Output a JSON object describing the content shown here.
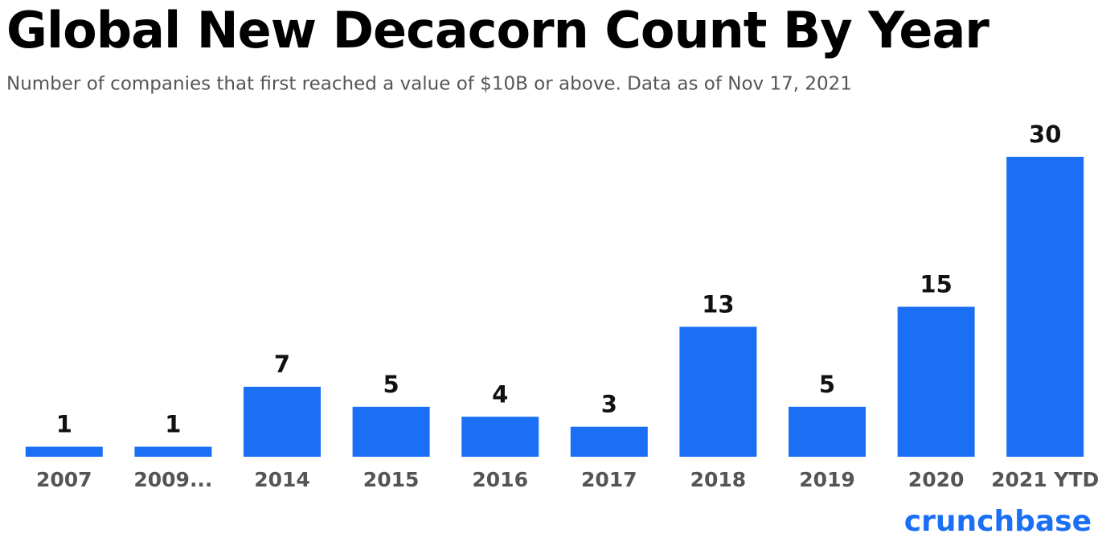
{
  "chart_data": {
    "type": "bar",
    "title": "Global New Decacorn Count By Year",
    "subtitle": "Number of companies that first reached a value of $10B or above. Data as of Nov 17, 2021",
    "brand": "crunchbase",
    "categories": [
      "2007",
      "2009...",
      "2014",
      "2015",
      "2016",
      "2017",
      "2018",
      "2019",
      "2020",
      "2021 YTD"
    ],
    "values": [
      1,
      1,
      7,
      5,
      4,
      3,
      13,
      5,
      15,
      30
    ],
    "color": "#1a6ff5"
  }
}
